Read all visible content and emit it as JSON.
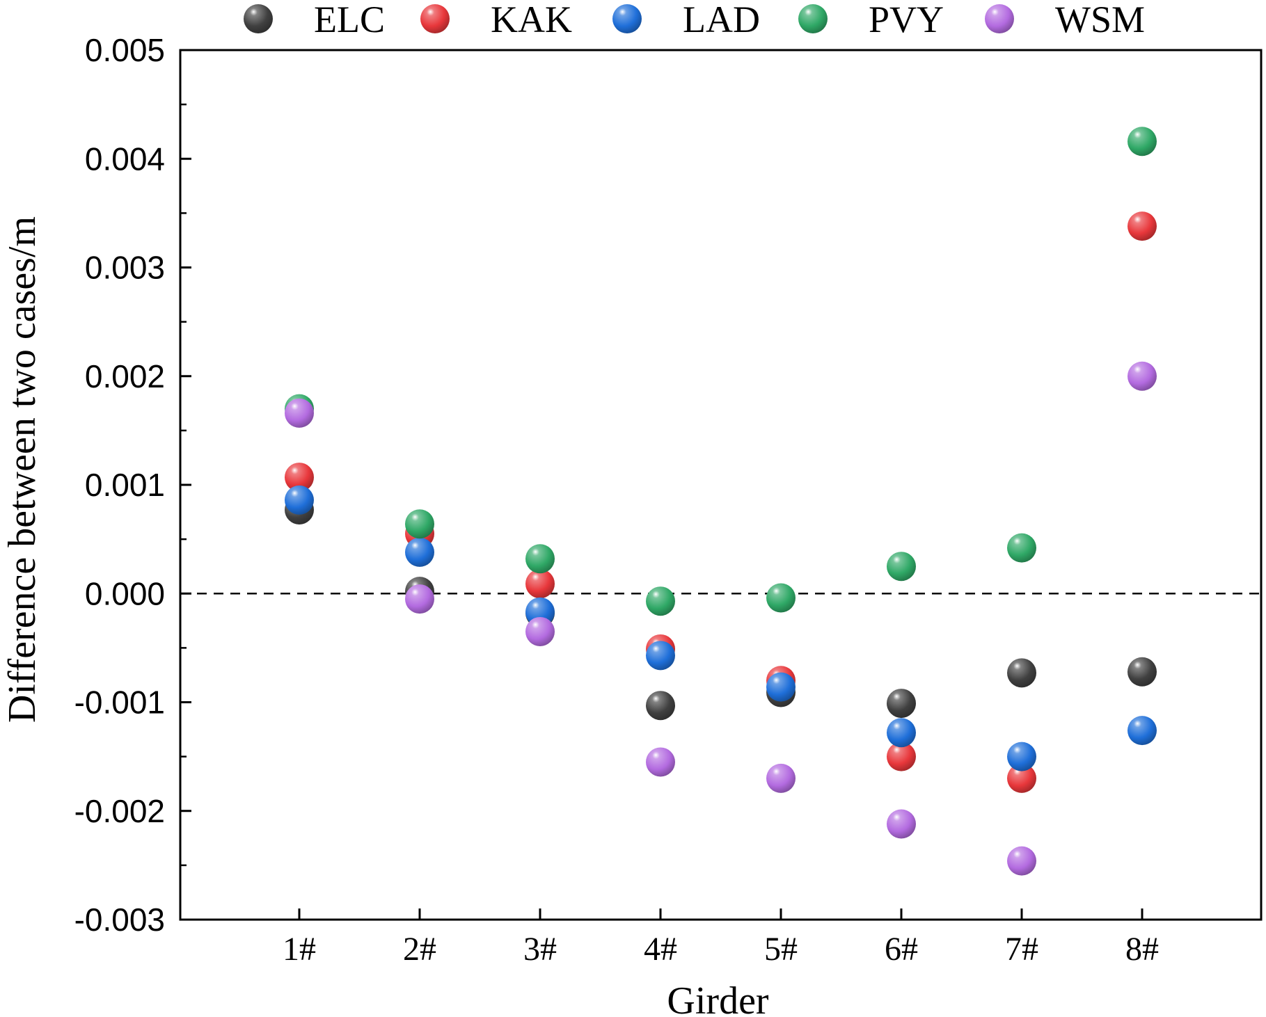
{
  "chart_data": {
    "type": "scatter",
    "title": "",
    "xlabel": "Girder",
    "ylabel": "Difference between two cases/m",
    "categories": [
      "1#",
      "2#",
      "3#",
      "4#",
      "5#",
      "6#",
      "7#",
      "8#"
    ],
    "ylim": [
      -0.003,
      0.005
    ],
    "yticks": [
      "0.005",
      "0.004",
      "0.003",
      "0.002",
      "0.001",
      "0.000",
      "-0.001",
      "-0.002",
      "-0.003"
    ],
    "reference_line": {
      "y": 0,
      "style": "dashed"
    },
    "grid": false,
    "legend_position": "top",
    "series": [
      {
        "name": "ELC",
        "color": "#404040",
        "values": [
          0.00077,
          2e-05,
          -0.00018,
          -0.00103,
          -0.00091,
          -0.00101,
          -0.00073,
          -0.00072
        ]
      },
      {
        "name": "KAK",
        "color": "#e8373b",
        "values": [
          0.00107,
          0.00055,
          9e-05,
          -0.00051,
          -0.0008,
          -0.0015,
          -0.0017,
          0.00338
        ]
      },
      {
        "name": "LAD",
        "color": "#1f6fd9",
        "values": [
          0.00086,
          0.00038,
          -0.00017,
          -0.00057,
          -0.00086,
          -0.00128,
          -0.0015,
          -0.00126
        ]
      },
      {
        "name": "PVY",
        "color": "#2fa866",
        "values": [
          0.0017,
          0.00064,
          0.00032,
          -7e-05,
          -4e-05,
          0.00025,
          0.00042,
          0.00416
        ]
      },
      {
        "name": "WSM",
        "color": "#b36be0",
        "values": [
          0.00166,
          -5e-05,
          -0.00035,
          -0.00155,
          -0.0017,
          -0.00212,
          -0.00246,
          0.002
        ]
      }
    ]
  }
}
